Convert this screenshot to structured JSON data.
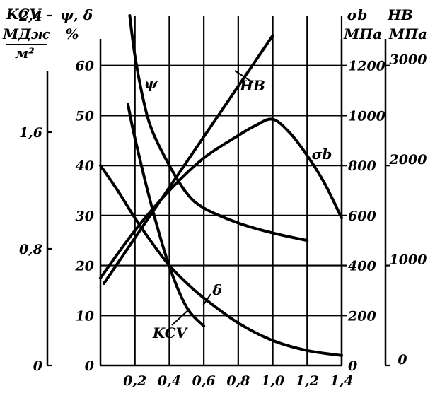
{
  "chart_data": {
    "type": "line",
    "xlabel": "",
    "x_ticks": [
      "0,2",
      "0,4",
      "0,6",
      "0,8",
      "1,0",
      "1,2",
      "1,4"
    ],
    "xlim": [
      0,
      1.4
    ],
    "grid": true,
    "axes": {
      "kcv": {
        "title_lines": [
          "KCV",
          "МДж",
          "м²"
        ],
        "ticks": [
          "0",
          "0,8",
          "1,6",
          "2,4"
        ],
        "range": [
          0,
          2.4
        ]
      },
      "psi_delta": {
        "title_lines": [
          "ψ, δ",
          "%"
        ],
        "ticks": [
          "10",
          "20",
          "30",
          "40",
          "50",
          "60"
        ],
        "zero_label": "0",
        "range": [
          0,
          70
        ]
      },
      "sigma": {
        "title_lines": [
          "σb",
          "МПа"
        ],
        "ticks": [
          "200",
          "400",
          "600",
          "800",
          "1000",
          "1200"
        ],
        "zero_label": "0",
        "range": [
          0,
          1400
        ]
      },
      "hb": {
        "title_lines": [
          "HB",
          "МПа"
        ],
        "ticks": [
          "0",
          "1000",
          "2000",
          "3000"
        ],
        "range": [
          0,
          3500
        ]
      }
    },
    "series": [
      {
        "name": "ψ",
        "axis": "psi_delta",
        "x": [
          0.17,
          0.2,
          0.25,
          0.3,
          0.4,
          0.5,
          0.6,
          0.8,
          1.0,
          1.2
        ],
        "y": [
          70,
          62,
          53,
          47,
          40,
          34.5,
          31.5,
          28.5,
          26.5,
          25
        ]
      },
      {
        "name": "δ",
        "axis": "psi_delta",
        "x": [
          0,
          0.1,
          0.2,
          0.3,
          0.4,
          0.5,
          0.6,
          0.8,
          1.0,
          1.2,
          1.4
        ],
        "y": [
          40,
          35,
          29.5,
          24.5,
          20,
          16.5,
          13.5,
          8.5,
          5,
          3,
          2
        ]
      },
      {
        "name": "σb",
        "axis": "sigma",
        "x": [
          0,
          0.2,
          0.4,
          0.6,
          0.8,
          0.9,
          1.0,
          1.1,
          1.2,
          1.3,
          1.4
        ],
        "y": [
          350,
          540,
          700,
          830,
          920,
          960,
          985,
          930,
          840,
          730,
          590
        ]
      },
      {
        "name": "HB",
        "axis": "hb",
        "x": [
          0.02,
          1.0
        ],
        "y": [
          820,
          3300
        ]
      },
      {
        "name": "KCV",
        "axis": "kcv",
        "x": [
          0.16,
          0.2,
          0.3,
          0.4,
          0.5,
          0.6
        ],
        "y": [
          1.79,
          1.56,
          1.08,
          0.68,
          0.4,
          0.27
        ]
      }
    ],
    "annotations": [
      {
        "text": "ψ",
        "target": "ψ"
      },
      {
        "text": "HB",
        "target": "HB"
      },
      {
        "text": "σb",
        "target": "σb"
      },
      {
        "text": "δ",
        "target": "δ"
      },
      {
        "text": "KCV",
        "target": "KCV"
      }
    ]
  }
}
